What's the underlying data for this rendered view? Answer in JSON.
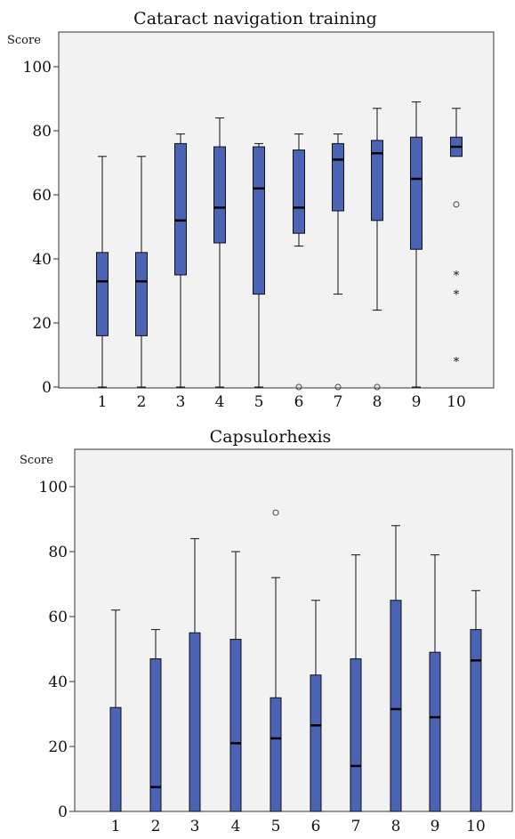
{
  "chart_data": [
    {
      "type": "boxplot",
      "title": "Cataract navigation training",
      "ylabel": "Score",
      "xlabel": "",
      "ylim": [
        0,
        110
      ],
      "yticks": [
        0,
        20,
        40,
        60,
        80,
        100
      ],
      "categories": [
        "1",
        "2",
        "3",
        "4",
        "5",
        "6",
        "7",
        "8",
        "9",
        "10"
      ],
      "grid": false,
      "fill_color": "#4a63b4",
      "background_color": "#f2f2f2",
      "boxes": [
        {
          "min": 0,
          "q1": 16,
          "median": 33,
          "q3": 42,
          "max": 72,
          "outliers": [],
          "extremes": []
        },
        {
          "min": 0,
          "q1": 16,
          "median": 33,
          "q3": 42,
          "max": 72,
          "outliers": [],
          "extremes": []
        },
        {
          "min": 0,
          "q1": 35,
          "median": 52,
          "q3": 76,
          "max": 79,
          "outliers": [],
          "extremes": []
        },
        {
          "min": 0,
          "q1": 45,
          "median": 56,
          "q3": 75,
          "max": 84,
          "outliers": [],
          "extremes": []
        },
        {
          "min": 0,
          "q1": 29,
          "median": 62,
          "q3": 75,
          "max": 76,
          "outliers": [],
          "extremes": []
        },
        {
          "min": 44,
          "q1": 48,
          "median": 56,
          "q3": 74,
          "max": 79,
          "outliers": [
            0
          ],
          "extremes": []
        },
        {
          "min": 29,
          "q1": 55,
          "median": 71,
          "q3": 76,
          "max": 79,
          "outliers": [
            0
          ],
          "extremes": []
        },
        {
          "min": 24,
          "q1": 52,
          "median": 73,
          "q3": 77,
          "max": 87,
          "outliers": [
            0
          ],
          "extremes": []
        },
        {
          "min": 0,
          "q1": 43,
          "median": 65,
          "q3": 78,
          "max": 89,
          "outliers": [],
          "extremes": []
        },
        {
          "min": 72,
          "q1": 72,
          "median": 75,
          "q3": 78,
          "max": 87,
          "outliers": [
            57
          ],
          "extremes": [
            35,
            29,
            8
          ]
        }
      ]
    },
    {
      "type": "boxplot",
      "title": "Capsulorhexis",
      "ylabel": "Score",
      "xlabel": "",
      "ylim": [
        0,
        110
      ],
      "yticks": [
        0,
        20,
        40,
        60,
        80,
        100
      ],
      "categories": [
        "1",
        "2",
        "3",
        "4",
        "5",
        "6",
        "7",
        "8",
        "9",
        "10"
      ],
      "grid": false,
      "fill_color": "#4a63b4",
      "background_color": "#f2f2f2",
      "boxes": [
        {
          "min": 0,
          "q1": 0,
          "median": 0,
          "q3": 32,
          "max": 62,
          "outliers": [],
          "extremes": []
        },
        {
          "min": 0,
          "q1": 0,
          "median": 7.5,
          "q3": 47,
          "max": 56,
          "outliers": [],
          "extremes": []
        },
        {
          "min": 0,
          "q1": 0,
          "median": 0,
          "q3": 55,
          "max": 84,
          "outliers": [],
          "extremes": []
        },
        {
          "min": 0,
          "q1": 0,
          "median": 21,
          "q3": 53,
          "max": 80,
          "outliers": [],
          "extremes": []
        },
        {
          "min": 0,
          "q1": 0,
          "median": 22.5,
          "q3": 35,
          "max": 72,
          "outliers": [
            92
          ],
          "extremes": []
        },
        {
          "min": 0,
          "q1": 0,
          "median": 26.5,
          "q3": 42,
          "max": 65,
          "outliers": [],
          "extremes": []
        },
        {
          "min": 0,
          "q1": 0,
          "median": 14,
          "q3": 47,
          "max": 79,
          "outliers": [],
          "extremes": []
        },
        {
          "min": 0,
          "q1": 0,
          "median": 31.5,
          "q3": 65,
          "max": 88,
          "outliers": [],
          "extremes": []
        },
        {
          "min": 0,
          "q1": 0,
          "median": 29,
          "q3": 49,
          "max": 79,
          "outliers": [],
          "extremes": []
        },
        {
          "min": 0,
          "q1": 0,
          "median": 46.5,
          "q3": 56,
          "max": 68,
          "outliers": [],
          "extremes": []
        }
      ]
    }
  ]
}
